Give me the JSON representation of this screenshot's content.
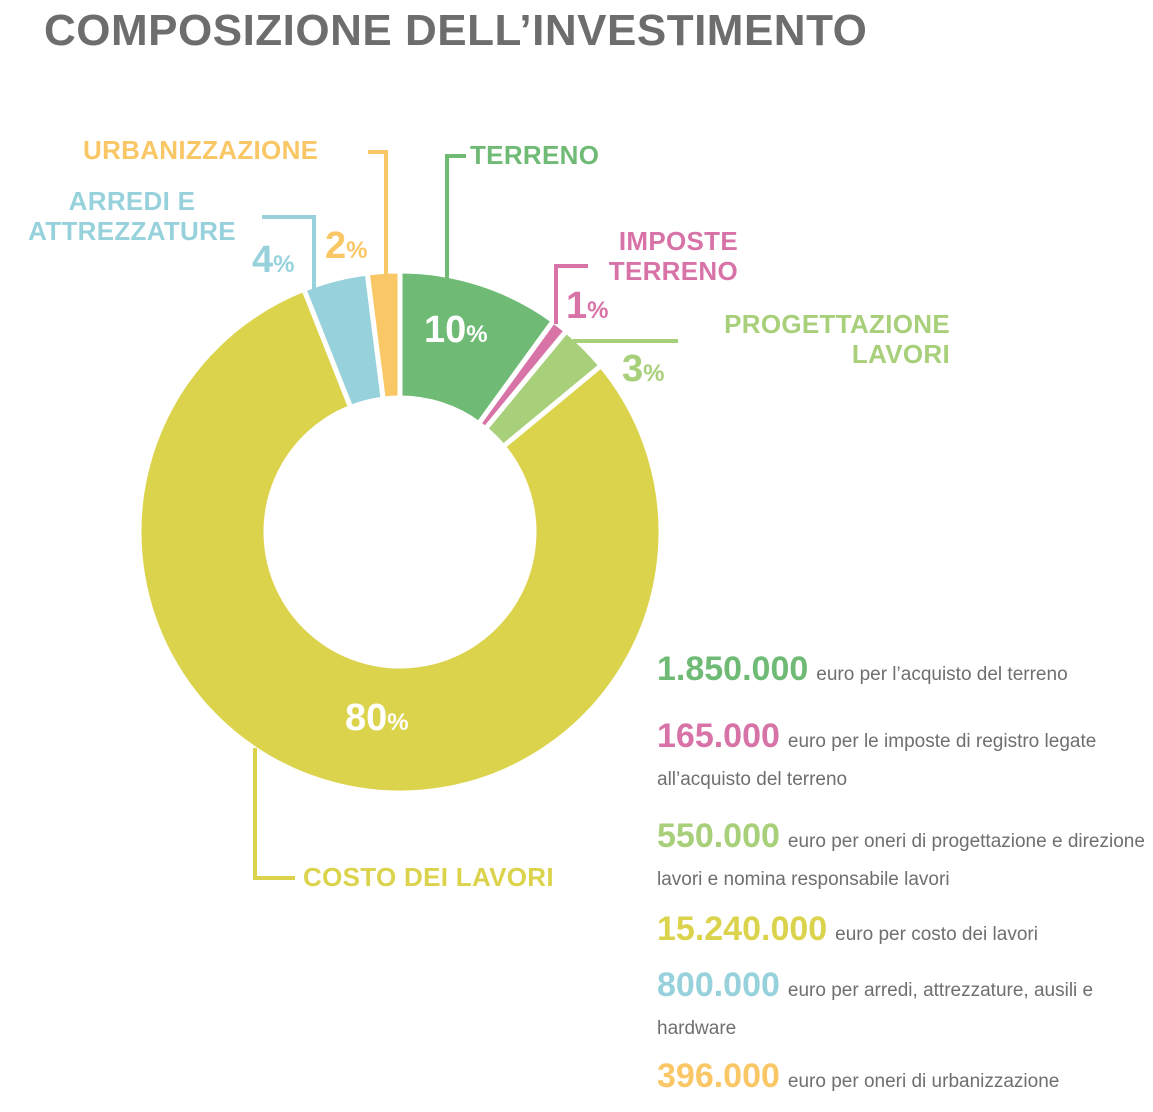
{
  "title": "COMPOSIZIONE DELL’INVESTIMENTO",
  "colors": {
    "terreno": "#6fbb75",
    "imposte": "#d873a8",
    "progettazione": "#a8cf7a",
    "lavori": "#dbd34c",
    "arredi": "#97d2dc",
    "urbanizzazione": "#fac766",
    "title": "#6d6d6d"
  },
  "chart_data": {
    "type": "pie",
    "donut": true,
    "title": "COMPOSIZIONE DELL’INVESTIMENTO",
    "slices": [
      {
        "key": "terreno",
        "label": "TERRENO",
        "pct": 10,
        "pct_text": "10",
        "value": 1850000
      },
      {
        "key": "imposte",
        "label": "IMPOSTE TERRENO",
        "pct": 1,
        "pct_text": "1",
        "value": 165000
      },
      {
        "key": "progettazione",
        "label": "PROGETTAZIONE LAVORI",
        "pct": 3,
        "pct_text": "3",
        "value": 550000
      },
      {
        "key": "lavori",
        "label": "COSTO DEI LAVORI",
        "pct": 80,
        "pct_text": "80",
        "value": 15240000
      },
      {
        "key": "arredi",
        "label": "ARREDI E ATTREZZATURE",
        "pct": 4,
        "pct_text": "4",
        "value": 800000
      },
      {
        "key": "urbanizzazione",
        "label": "URBANIZZAZIONE",
        "pct": 2,
        "pct_text": "2",
        "value": 396000
      }
    ]
  },
  "labels": {
    "urbanizzazione": "URBANIZZAZIONE",
    "terreno": "TERRENO",
    "arredi_line1": "ARREDI E",
    "arredi_line2": "ATTREZZATURE",
    "imposte_line1": "IMPOSTE",
    "imposte_line2": "TERRENO",
    "progettazione_line1": "PROGETTAZIONE",
    "progettazione_line2": "LAVORI",
    "lavori": "COSTO DEI LAVORI"
  },
  "pct": {
    "terreno": "10",
    "imposte": "1",
    "progettazione": "3",
    "lavori": "80",
    "arredi": "4",
    "urbanizzazione": "2",
    "sign": "%"
  },
  "legend": [
    {
      "key": "terreno",
      "amount": "1.850.000",
      "text": "euro per l’acquisto del terreno"
    },
    {
      "key": "imposte",
      "amount": "165.000",
      "text": "euro per le imposte di registro legate all’acquisto del terreno"
    },
    {
      "key": "progettazione",
      "amount": "550.000",
      "text": "euro per oneri di progettazione e direzione lavori e nomina responsabile lavori"
    },
    {
      "key": "lavori",
      "amount": "15.240.000",
      "text": "euro per costo dei lavori"
    },
    {
      "key": "arredi",
      "amount": "800.000",
      "text": "euro per arredi, attrezzature, ausili e hardware"
    },
    {
      "key": "urbanizzazione",
      "amount": "396.000",
      "text": "euro per oneri di urbanizzazione"
    }
  ]
}
